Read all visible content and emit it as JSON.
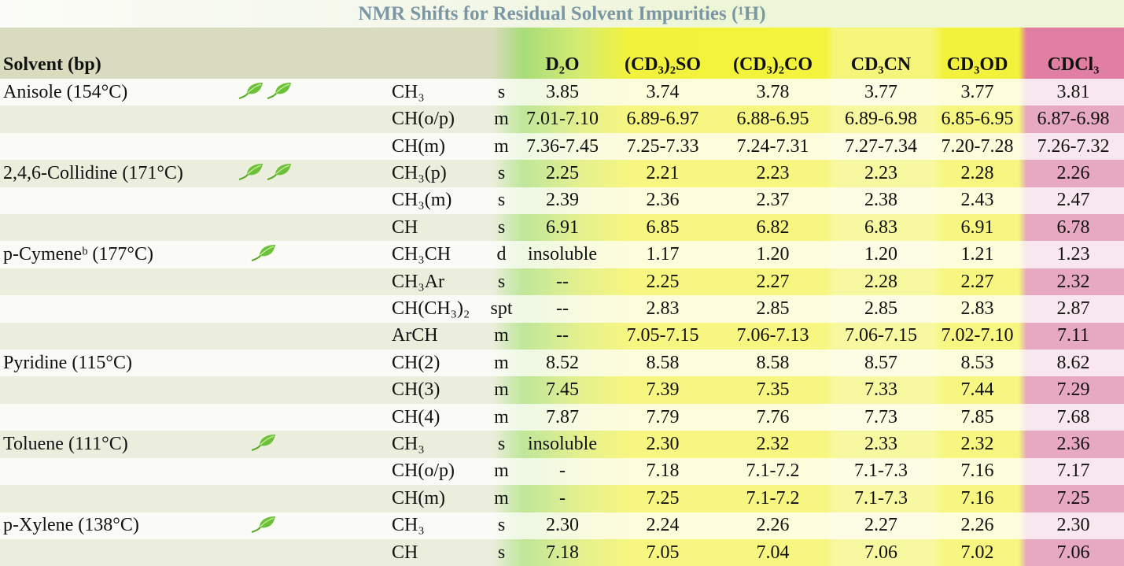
{
  "title": "NMR Shifts for Residual Solvent Impurities (¹H)",
  "header": {
    "solvent": "Solvent (bp)",
    "columns": [
      "D₂O",
      "(CD₃)₂SO",
      "(CD₃)₂CO",
      "CD₃CN",
      "CD₃OD",
      "CDCl₃"
    ]
  },
  "groups": [
    {
      "solvent": "Anisole (154°C)",
      "leaves": 2,
      "rows": [
        {
          "proton": "CH₃",
          "mult": "s",
          "values": [
            "3.85",
            "3.74",
            "3.78",
            "3.77",
            "3.77",
            "3.81"
          ]
        },
        {
          "proton": "CH(o/p)",
          "mult": "m",
          "values": [
            "7.01-7.10",
            "6.89-6.97",
            "6.88-6.95",
            "6.89-6.98",
            "6.85-6.95",
            "6.87-6.98"
          ]
        },
        {
          "proton": "CH(m)",
          "mult": "m",
          "values": [
            "7.36-7.45",
            "7.25-7.33",
            "7.24-7.31",
            "7.27-7.34",
            "7.20-7.28",
            "7.26-7.32"
          ]
        }
      ]
    },
    {
      "solvent": "2,4,6-Collidine (171°C)",
      "leaves": 2,
      "rows": [
        {
          "proton": "CH₃(p)",
          "mult": "s",
          "values": [
            "2.25",
            "2.21",
            "2.23",
            "2.23",
            "2.28",
            "2.26"
          ]
        },
        {
          "proton": "CH₃(m)",
          "mult": "s",
          "values": [
            "2.39",
            "2.36",
            "2.37",
            "2.38",
            "2.43",
            "2.47"
          ]
        },
        {
          "proton": "CH",
          "mult": "s",
          "values": [
            "6.91",
            "6.85",
            "6.82",
            "6.83",
            "6.91",
            "6.78"
          ]
        }
      ]
    },
    {
      "solvent": "p-Cymeneᵇ (177°C)",
      "leaves": 1,
      "rows": [
        {
          "proton": "CH₃CH",
          "mult": "d",
          "values": [
            "insoluble",
            "1.17",
            "1.20",
            "1.20",
            "1.21",
            "1.23"
          ]
        },
        {
          "proton": "CH₃Ar",
          "mult": "s",
          "values": [
            "--",
            "2.25",
            "2.27",
            "2.28",
            "2.27",
            "2.32"
          ]
        },
        {
          "proton": "CH(CH₃)₂",
          "mult": "spt",
          "values": [
            "--",
            "2.83",
            "2.85",
            "2.85",
            "2.83",
            "2.87"
          ]
        },
        {
          "proton": "ArCH",
          "mult": "m",
          "values": [
            "--",
            "7.05-7.15",
            "7.06-7.13",
            "7.06-7.15",
            "7.02-7.10",
            "7.11"
          ]
        }
      ]
    },
    {
      "solvent": "Pyridine (115°C)",
      "leaves": 0,
      "rows": [
        {
          "proton": "CH(2)",
          "mult": "m",
          "values": [
            "8.52",
            "8.58",
            "8.58",
            "8.57",
            "8.53",
            "8.62"
          ]
        },
        {
          "proton": "CH(3)",
          "mult": "m",
          "values": [
            "7.45",
            "7.39",
            "7.35",
            "7.33",
            "7.44",
            "7.29"
          ]
        },
        {
          "proton": "CH(4)",
          "mult": "m",
          "values": [
            "7.87",
            "7.79",
            "7.76",
            "7.73",
            "7.85",
            "7.68"
          ]
        }
      ]
    },
    {
      "solvent": "Toluene (111°C)",
      "leaves": 1,
      "rows": [
        {
          "proton": "CH₃",
          "mult": "s",
          "values": [
            "insoluble",
            "2.30",
            "2.32",
            "2.33",
            "2.32",
            "2.36"
          ]
        },
        {
          "proton": "CH(o/p)",
          "mult": "m",
          "values": [
            "-",
            "7.18",
            "7.1-7.2",
            "7.1-7.3",
            "7.16",
            "7.17"
          ]
        },
        {
          "proton": "CH(m)",
          "mult": "m",
          "values": [
            "-",
            "7.25",
            "7.1-7.2",
            "7.1-7.3",
            "7.16",
            "7.25"
          ]
        }
      ]
    },
    {
      "solvent": "p-Xylene (138°C)",
      "leaves": 1,
      "rows": [
        {
          "proton": "CH₃",
          "mult": "s",
          "values": [
            "2.30",
            "2.24",
            "2.26",
            "2.27",
            "2.26",
            "2.30"
          ]
        },
        {
          "proton": "CH",
          "mult": "s",
          "values": [
            "7.18",
            "7.05",
            "7.04",
            "7.06",
            "7.02",
            "7.06"
          ]
        }
      ]
    }
  ]
}
